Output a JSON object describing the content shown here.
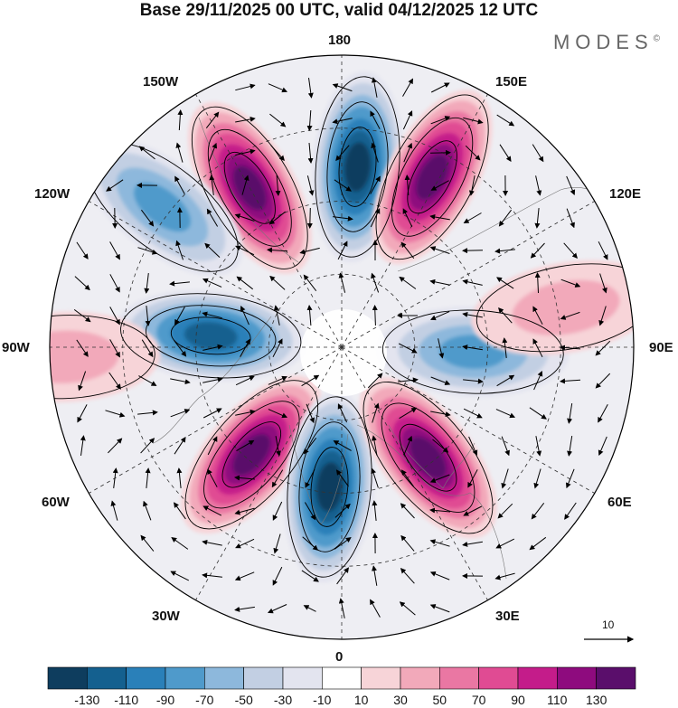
{
  "title": "Base 29/11/2025 00 UTC, valid 04/12/2025 12 UTC",
  "brand": "MODES",
  "brand_mark": "©",
  "longitude_labels": {
    "top": "180",
    "bottom": "0",
    "left": "90W",
    "right": "90E",
    "upper_left_1": "150W",
    "upper_left_2": "120W",
    "upper_right_1": "150E",
    "upper_right_2": "120E",
    "lower_left_1": "60W",
    "lower_left_2": "30W",
    "lower_right_1": "60E",
    "lower_right_2": "30E"
  },
  "vector_reference": {
    "label": "10",
    "magnitude": 10
  },
  "colorbar": {
    "colors": [
      "#0e3d5e",
      "#14608f",
      "#2a80b9",
      "#4f9acb",
      "#8db8dc",
      "#c2cfe3",
      "#e3e4ef",
      "#ffffff",
      "#f7d4d8",
      "#f2a9ba",
      "#ea77a3",
      "#e04b93",
      "#c41c8a",
      "#8e0b7e",
      "#5a0e6b"
    ],
    "ticks": [
      "-130",
      "-110",
      "-90",
      "-70",
      "-50",
      "-30",
      "-10",
      "10",
      "30",
      "50",
      "70",
      "90",
      "110",
      "130"
    ]
  },
  "anomaly_centers": [
    {
      "name": "trough-pacific-north",
      "value": -120,
      "lon_deg": 175,
      "colat": 0.62
    },
    {
      "name": "ridge-bering",
      "value": 120,
      "lon_deg": 152,
      "colat": 0.66
    },
    {
      "name": "ridge-alaska",
      "value": 130,
      "lon_deg": -150,
      "colat": 0.63
    },
    {
      "name": "trough-canada-west",
      "value": -60,
      "lon_deg": -128,
      "colat": 0.78
    },
    {
      "name": "trough-hudson",
      "value": -110,
      "lon_deg": -95,
      "colat": 0.45
    },
    {
      "name": "ridge-north-atlantic",
      "value": 130,
      "lon_deg": -40,
      "colat": 0.48
    },
    {
      "name": "trough-east-atlantic",
      "value": -120,
      "lon_deg": -5,
      "colat": 0.48
    },
    {
      "name": "ridge-scandinavia",
      "value": 120,
      "lon_deg": 38,
      "colat": 0.48
    },
    {
      "name": "trough-siberia",
      "value": -60,
      "lon_deg": 88,
      "colat": 0.45
    },
    {
      "name": "ridge-siberia-east",
      "value": 30,
      "lon_deg": 100,
      "colat": 0.78
    },
    {
      "name": "ridge-west-atlantic",
      "value": 30,
      "lon_deg": -88,
      "colat": 0.95
    }
  ]
}
